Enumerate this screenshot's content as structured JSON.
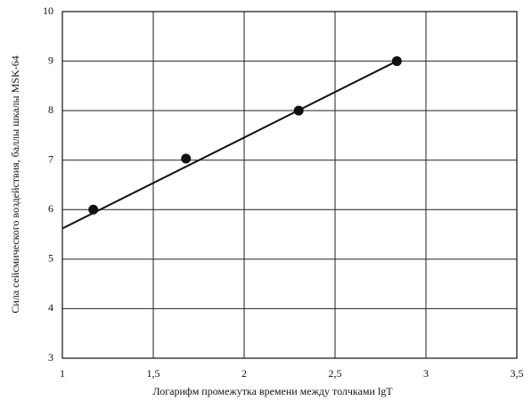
{
  "chart_data": {
    "type": "scatter",
    "x_label": "Логарифм промежутка времени между толчками lgT",
    "y_label": "Сила сейсмического воздействия, баллы шкалы MSK-64",
    "x": [
      1.17,
      1.68,
      2.3,
      2.84
    ],
    "values": [
      6,
      7.03,
      8,
      9
    ],
    "color": "#111111",
    "trend_line": {
      "x": [
        1,
        2.84
      ],
      "values": [
        5.62,
        9
      ]
    },
    "xlim": [
      1,
      3.5
    ],
    "xticks": [
      1,
      {
        "value": 1.5,
        "label": "1,5"
      },
      2,
      {
        "value": 2.5,
        "label": "2,5"
      },
      3,
      {
        "value": 3.5,
        "label": "3,5"
      }
    ],
    "ylim": [
      3,
      10
    ],
    "yticks": [
      3,
      4,
      5,
      6,
      7,
      8,
      9,
      10
    ],
    "grid": true
  }
}
